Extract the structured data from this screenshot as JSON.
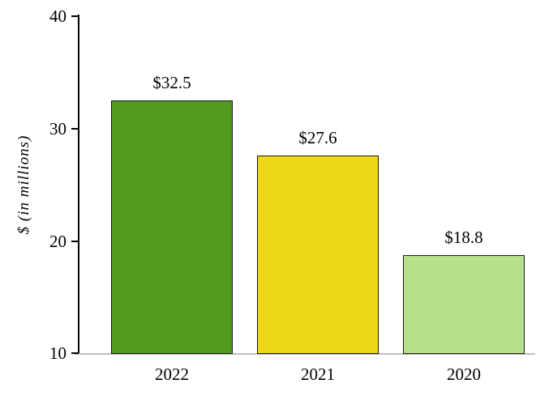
{
  "chart_data": {
    "type": "bar",
    "title": "",
    "categories": [
      "2022",
      "2021",
      "2020"
    ],
    "values": [
      32.5,
      27.6,
      18.8
    ],
    "value_labels": [
      "$32.5",
      "$27.6",
      "$18.8"
    ],
    "xlabel": "",
    "ylabel": "$ (in millions)",
    "ylim": [
      10,
      40
    ],
    "ytick_labels": [
      "40",
      "30",
      "20",
      "10"
    ],
    "yticks": [
      40,
      30,
      20,
      10
    ],
    "bar_colors": [
      "#539b1e",
      "#eed717",
      "#b7e08b"
    ],
    "bar_border_color": "#1a1a1a",
    "grid": false,
    "legend_position": "none",
    "background_color": "#ffffff"
  }
}
